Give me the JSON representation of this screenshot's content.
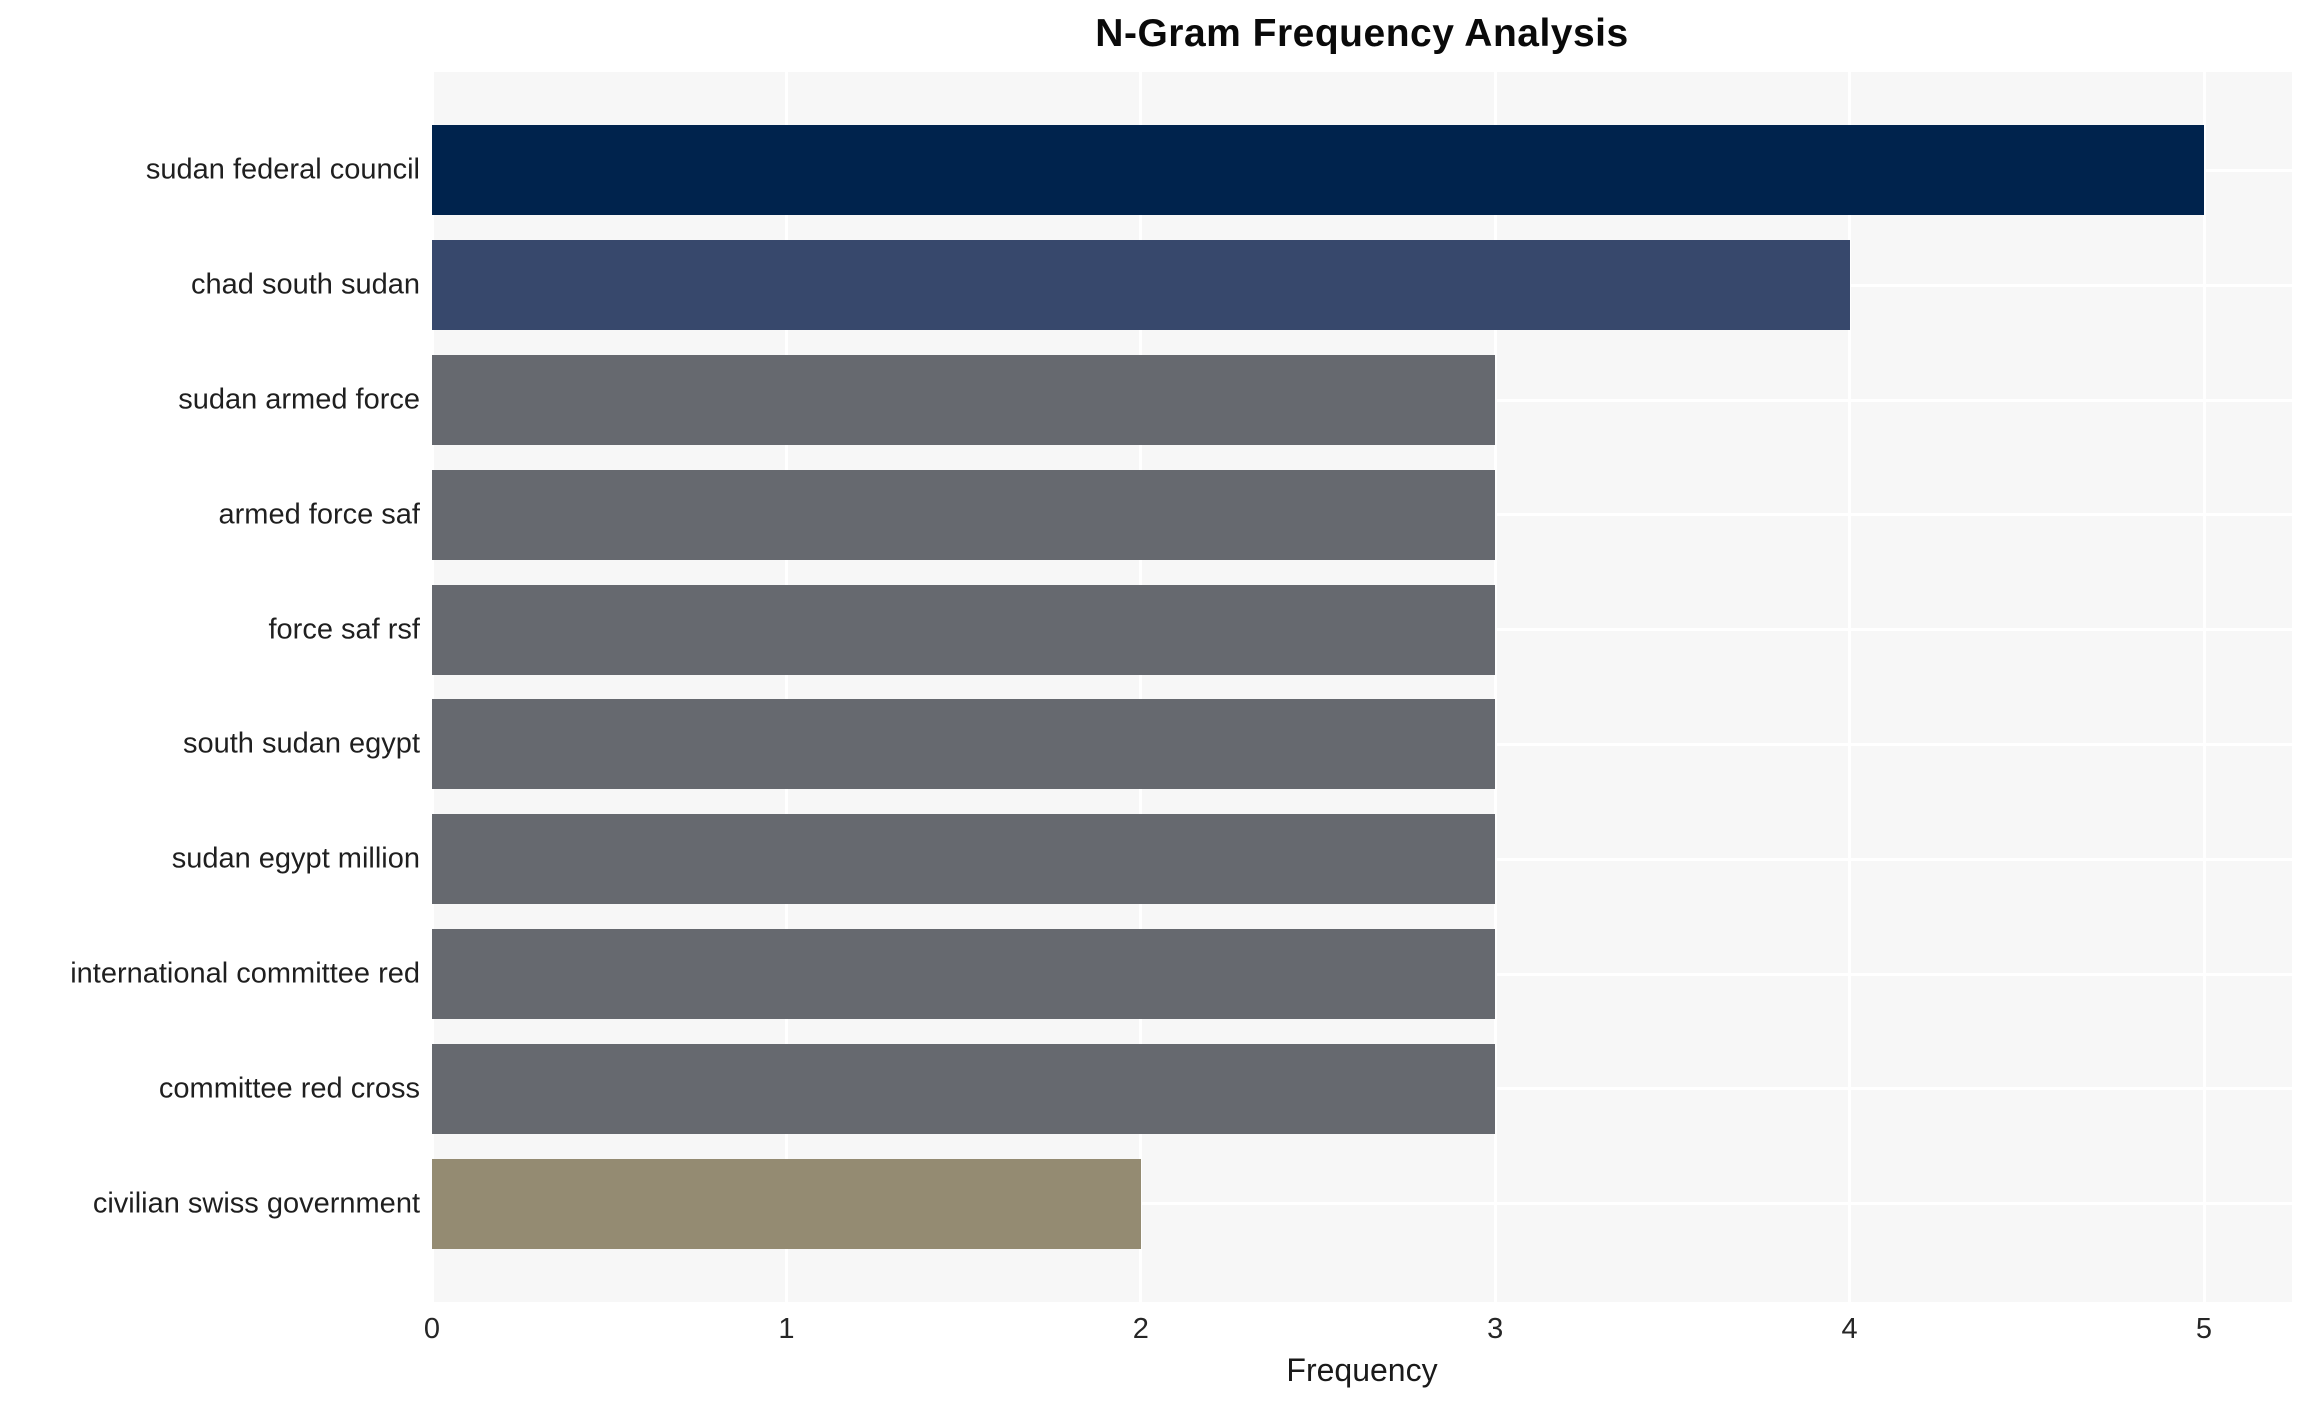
{
  "chart_data": {
    "type": "bar",
    "orientation": "horizontal",
    "title": "N-Gram Frequency Analysis",
    "xlabel": "Frequency",
    "ylabel": "",
    "xlim": [
      0,
      5.25
    ],
    "xticks": [
      0,
      1,
      2,
      3,
      4,
      5
    ],
    "grid": true,
    "legend": "none",
    "categories": [
      "sudan federal council",
      "chad south sudan",
      "sudan armed force",
      "armed force saf",
      "force saf rsf",
      "south sudan egypt",
      "sudan egypt million",
      "international committee red",
      "committee red cross",
      "civilian swiss government"
    ],
    "values": [
      5,
      4,
      3,
      3,
      3,
      3,
      3,
      3,
      3,
      2
    ],
    "bar_colors": [
      "#00234d",
      "#37486c",
      "#66696f",
      "#66696f",
      "#66696f",
      "#66696f",
      "#66696f",
      "#66696f",
      "#66696f",
      "#948b72"
    ]
  },
  "colors": {
    "plot_background": "#f7f7f7",
    "gridline": "#ffffff",
    "title_text": "#0a0a0a",
    "axis_text": "#262626"
  }
}
